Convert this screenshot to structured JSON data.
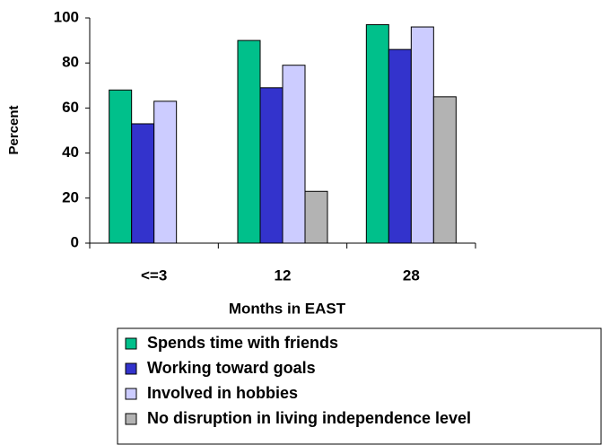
{
  "chart_data": {
    "type": "bar",
    "xlabel": "Months in EAST",
    "ylabel": "Percent",
    "categories": [
      "<=3",
      "12",
      "28"
    ],
    "series": [
      {
        "name": "Spends time with friends",
        "color": "#00c08b",
        "values": [
          68,
          90,
          97
        ]
      },
      {
        "name": "Working toward goals",
        "color": "#3333cc",
        "values": [
          53,
          69,
          86
        ]
      },
      {
        "name": "Involved in hobbies",
        "color": "#ccccff",
        "values": [
          63,
          79,
          96
        ]
      },
      {
        "name": "No disruption in living independence level",
        "color": "#b3b3b3",
        "values": [
          null,
          23,
          65
        ]
      }
    ],
    "ylim": [
      0,
      100
    ],
    "yticks": [
      0,
      20,
      40,
      60,
      80,
      100
    ]
  }
}
